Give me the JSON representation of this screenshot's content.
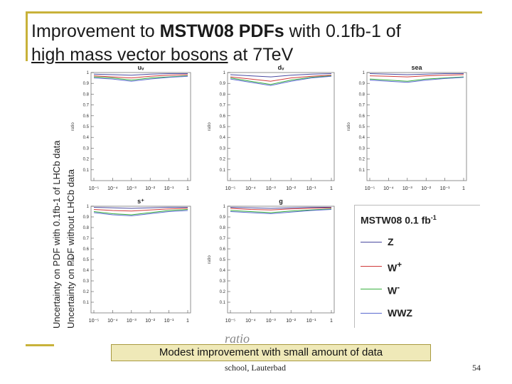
{
  "title": {
    "prefix": "Improvement to ",
    "bold": "MSTW08 PDFs",
    "suffix": " with 0.1fb-1 of",
    "line2": "high mass vector bosons",
    "line2_rest": " at 7TeV"
  },
  "ylabel_outer": "Uncertainty on PDF with 0.1fb-1 of LHCb data",
  "ylabel_inner": "Uncertainty on PDF without LHCb data",
  "legend": {
    "title": "MSTW08 0.1 fb",
    "title_sup": "-1",
    "items": [
      {
        "name": "Z",
        "color": "#4a4aa0"
      },
      {
        "name": "W",
        "sup": "+",
        "color": "#d03a3a"
      },
      {
        "name": "W",
        "sup": "-",
        "color": "#3ab040"
      },
      {
        "name": "WWZ",
        "color": "#5a6ad0"
      }
    ]
  },
  "note": "Modest improvement with small amount of data",
  "footer": "school, Lauterbad",
  "page_number": "54",
  "axis_stub": "ratio",
  "chart_data": [
    {
      "type": "line",
      "title": "uᵥ",
      "ylabel": "ratio",
      "ylim": [
        0,
        1
      ],
      "yticks": [
        "0.1",
        "0.2",
        "0.3",
        "0.4",
        "0.5",
        "0.6",
        "0.7",
        "0.8",
        "0.9",
        "1"
      ],
      "xticks": [
        "10⁻⁵",
        "10⁻⁴",
        "10⁻³",
        "10⁻²",
        "10⁻¹",
        "1"
      ],
      "series": [
        {
          "color": "#4a4aa0",
          "x": [
            -5,
            -4,
            -3,
            -2,
            -1,
            0
          ],
          "y": [
            0.985,
            0.98,
            0.975,
            0.985,
            0.99,
            0.99
          ]
        },
        {
          "color": "#d03a3a",
          "x": [
            -5,
            -4,
            -3,
            -2,
            -1,
            0
          ],
          "y": [
            0.97,
            0.96,
            0.95,
            0.965,
            0.975,
            0.98
          ]
        },
        {
          "color": "#3ab040",
          "x": [
            -5,
            -4,
            -3,
            -2,
            -1,
            0
          ],
          "y": [
            0.96,
            0.95,
            0.93,
            0.95,
            0.96,
            0.97
          ]
        },
        {
          "color": "#5a6ad0",
          "x": [
            -5,
            -4,
            -3,
            -2,
            -1,
            0
          ],
          "y": [
            0.95,
            0.94,
            0.92,
            0.94,
            0.955,
            0.965
          ]
        }
      ]
    },
    {
      "type": "line",
      "title": "dᵥ",
      "ylabel": "ratio",
      "ylim": [
        0,
        1
      ],
      "yticks": [
        "0.1",
        "0.2",
        "0.3",
        "0.4",
        "0.5",
        "0.6",
        "0.7",
        "0.8",
        "0.9",
        "1"
      ],
      "xticks": [
        "10⁻⁵",
        "10⁻⁴",
        "10⁻³",
        "10⁻²",
        "10⁻¹",
        "1"
      ],
      "series": [
        {
          "color": "#4a4aa0",
          "x": [
            -5,
            -4,
            -3,
            -2,
            -1,
            0
          ],
          "y": [
            0.98,
            0.97,
            0.96,
            0.975,
            0.985,
            0.99
          ]
        },
        {
          "color": "#d03a3a",
          "x": [
            -5,
            -4,
            -3,
            -2,
            -1,
            0
          ],
          "y": [
            0.96,
            0.94,
            0.92,
            0.95,
            0.965,
            0.975
          ]
        },
        {
          "color": "#3ab040",
          "x": [
            -5,
            -4,
            -3,
            -2,
            -1,
            0
          ],
          "y": [
            0.95,
            0.92,
            0.89,
            0.93,
            0.955,
            0.97
          ]
        },
        {
          "color": "#5a6ad0",
          "x": [
            -5,
            -4,
            -3,
            -2,
            -1,
            0
          ],
          "y": [
            0.94,
            0.91,
            0.88,
            0.92,
            0.95,
            0.965
          ]
        }
      ]
    },
    {
      "type": "line",
      "title": "sea",
      "ylabel": "ratio",
      "ylim": [
        0,
        1
      ],
      "yticks": [
        "0.1",
        "0.2",
        "0.3",
        "0.4",
        "0.5",
        "0.6",
        "0.7",
        "0.8",
        "0.9",
        "1"
      ],
      "xticks": [
        "10⁻⁵",
        "10⁻⁴",
        "10⁻³",
        "10⁻²",
        "10⁻¹",
        "1"
      ],
      "series": [
        {
          "color": "#4a4aa0",
          "x": [
            -5,
            -4,
            -3,
            -2,
            -1,
            0
          ],
          "y": [
            0.99,
            0.985,
            0.98,
            0.985,
            0.99,
            0.99
          ]
        },
        {
          "color": "#d03a3a",
          "x": [
            -5,
            -4,
            -3,
            -2,
            -1,
            0
          ],
          "y": [
            0.97,
            0.965,
            0.96,
            0.97,
            0.975,
            0.98
          ]
        },
        {
          "color": "#3ab040",
          "x": [
            -5,
            -4,
            -3,
            -2,
            -1,
            0
          ],
          "y": [
            0.94,
            0.93,
            0.92,
            0.94,
            0.95,
            0.96
          ]
        },
        {
          "color": "#5a6ad0",
          "x": [
            -5,
            -4,
            -3,
            -2,
            -1,
            0
          ],
          "y": [
            0.93,
            0.92,
            0.91,
            0.93,
            0.945,
            0.955
          ]
        }
      ]
    },
    {
      "type": "line",
      "title": "s⁺",
      "ylabel": "ratio",
      "ylim": [
        0,
        1
      ],
      "yticks": [
        "0.1",
        "0.2",
        "0.3",
        "0.4",
        "0.5",
        "0.6",
        "0.7",
        "0.8",
        "0.9",
        "1"
      ],
      "xticks": [
        "10⁻⁵",
        "10⁻⁴",
        "10⁻³",
        "10⁻²",
        "10⁻¹",
        "1"
      ],
      "series": [
        {
          "color": "#4a4aa0",
          "x": [
            -5,
            -4,
            -3,
            -2,
            -1,
            0
          ],
          "y": [
            0.99,
            0.985,
            0.98,
            0.985,
            0.99,
            0.99
          ]
        },
        {
          "color": "#d03a3a",
          "x": [
            -5,
            -4,
            -3,
            -2,
            -1,
            0
          ],
          "y": [
            0.97,
            0.96,
            0.955,
            0.965,
            0.975,
            0.98
          ]
        },
        {
          "color": "#3ab040",
          "x": [
            -5,
            -4,
            -3,
            -2,
            -1,
            0
          ],
          "y": [
            0.95,
            0.93,
            0.92,
            0.94,
            0.96,
            0.97
          ]
        },
        {
          "color": "#5a6ad0",
          "x": [
            -5,
            -4,
            -3,
            -2,
            -1,
            0
          ],
          "y": [
            0.94,
            0.92,
            0.91,
            0.93,
            0.95,
            0.96
          ]
        }
      ]
    },
    {
      "type": "line",
      "title": "g",
      "ylabel": "ratio",
      "ylim": [
        0,
        1
      ],
      "yticks": [
        "0.1",
        "0.2",
        "0.3",
        "0.4",
        "0.5",
        "0.6",
        "0.7",
        "0.8",
        "0.9",
        "1"
      ],
      "xticks": [
        "10⁻⁵",
        "10⁻⁴",
        "10⁻³",
        "10⁻²",
        "10⁻¹",
        "1"
      ],
      "series": [
        {
          "color": "#4a4aa0",
          "x": [
            -5,
            -4,
            -3,
            -2,
            -1,
            0
          ],
          "y": [
            0.99,
            0.985,
            0.98,
            0.985,
            0.99,
            0.99
          ]
        },
        {
          "color": "#d03a3a",
          "x": [
            -5,
            -4,
            -3,
            -2,
            -1,
            0
          ],
          "y": [
            0.98,
            0.97,
            0.965,
            0.975,
            0.98,
            0.985
          ]
        },
        {
          "color": "#3ab040",
          "x": [
            -5,
            -4,
            -3,
            -2,
            -1,
            0
          ],
          "y": [
            0.96,
            0.95,
            0.94,
            0.955,
            0.965,
            0.975
          ]
        },
        {
          "color": "#5a6ad0",
          "x": [
            -5,
            -4,
            -3,
            -2,
            -1,
            0
          ],
          "y": [
            0.95,
            0.94,
            0.93,
            0.945,
            0.96,
            0.97
          ]
        }
      ]
    }
  ]
}
